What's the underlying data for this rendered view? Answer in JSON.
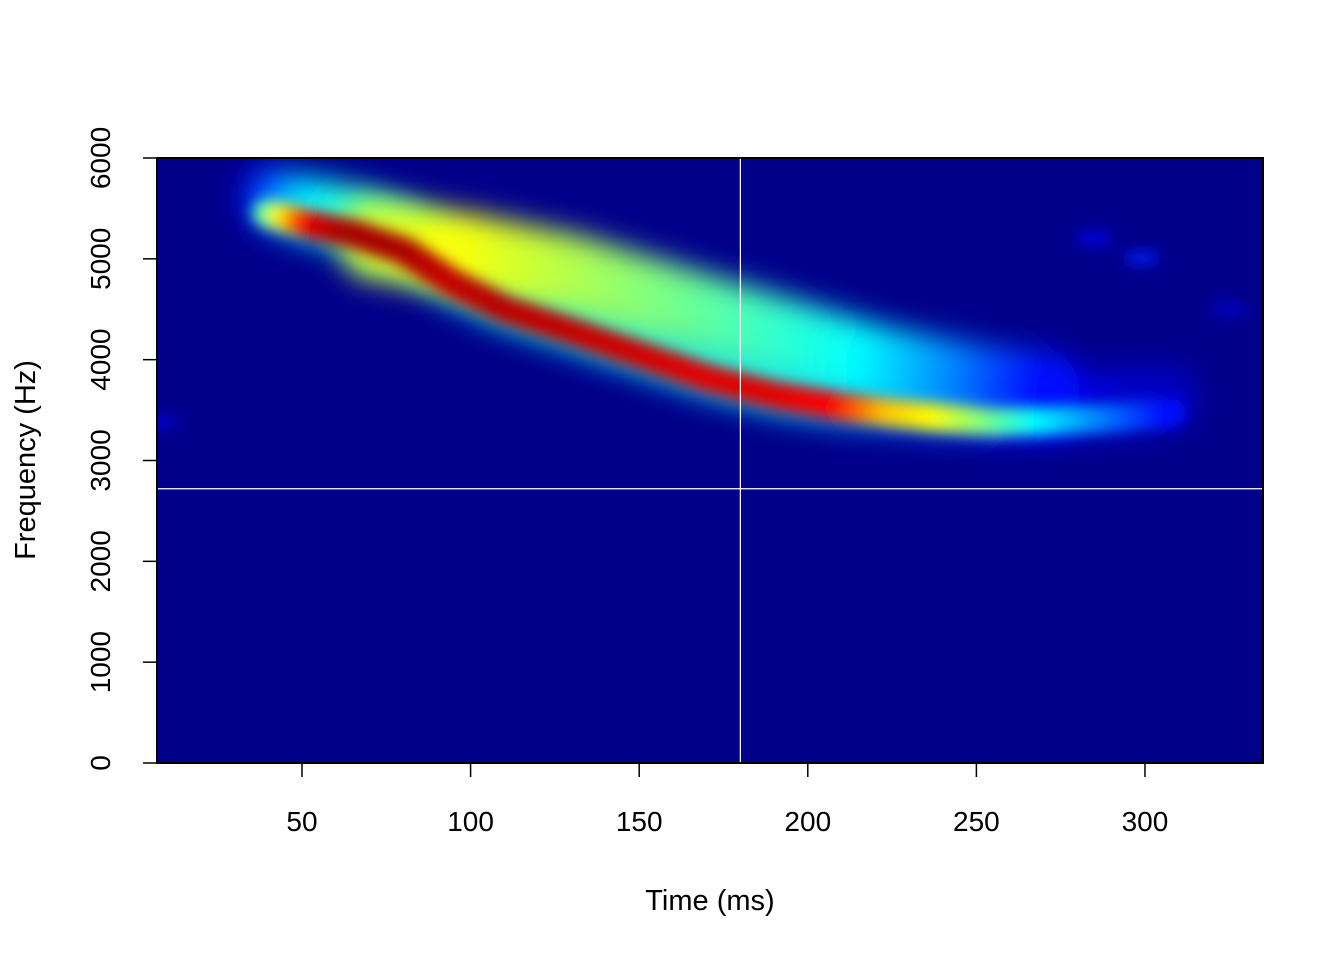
{
  "chart_data": {
    "type": "heatmap",
    "title": "",
    "xlabel": "Time (ms)",
    "ylabel": "Frequency (Hz)",
    "xlim": [
      7,
      335
    ],
    "ylim": [
      0,
      6000
    ],
    "x_ticks": [
      "50",
      "100",
      "150",
      "200",
      "250",
      "300"
    ],
    "x_tick_values": [
      50,
      100,
      150,
      200,
      250,
      300
    ],
    "y_ticks": [
      "0",
      "1000",
      "2000",
      "3000",
      "4000",
      "5000",
      "6000"
    ],
    "y_tick_values": [
      0,
      1000,
      2000,
      3000,
      4000,
      5000,
      6000
    ],
    "crosshair": {
      "time_ms": 180,
      "frequency_hz": 2720
    },
    "colormap": [
      "#00008b",
      "#0000ff",
      "#00ffff",
      "#ffff00",
      "#ff0000",
      "#8b0000"
    ],
    "background_color": "#00008b",
    "grid": false,
    "dominant_trace": {
      "time_ms": [
        40,
        55,
        65,
        80,
        95,
        110,
        130,
        150,
        170,
        190,
        210,
        225,
        240,
        255,
        270,
        290,
        310
      ],
      "frequency_hz": [
        5450,
        5320,
        5250,
        5080,
        4750,
        4500,
        4280,
        4050,
        3820,
        3650,
        3530,
        3470,
        3420,
        3380,
        3390,
        3420,
        3480
      ],
      "intensity": [
        0.45,
        0.85,
        0.95,
        0.95,
        0.9,
        0.92,
        0.9,
        0.88,
        0.85,
        0.85,
        0.8,
        0.65,
        0.6,
        0.5,
        0.4,
        0.3,
        0.2
      ]
    },
    "harmonic_spread": {
      "time_ms": [
        70,
        100,
        130,
        160,
        190,
        220,
        250,
        275
      ],
      "frequency_hz": [
        5200,
        5050,
        4850,
        4550,
        4250,
        3950,
        3750,
        3650
      ],
      "intensity": [
        0.55,
        0.6,
        0.55,
        0.5,
        0.45,
        0.4,
        0.3,
        0.2
      ]
    },
    "faint_blobs": {
      "time_ms": [
        285,
        299,
        325,
        8
      ],
      "frequency_hz": [
        5200,
        5010,
        4500,
        3380
      ],
      "intensity": [
        0.18,
        0.22,
        0.12,
        0.12
      ]
    }
  }
}
